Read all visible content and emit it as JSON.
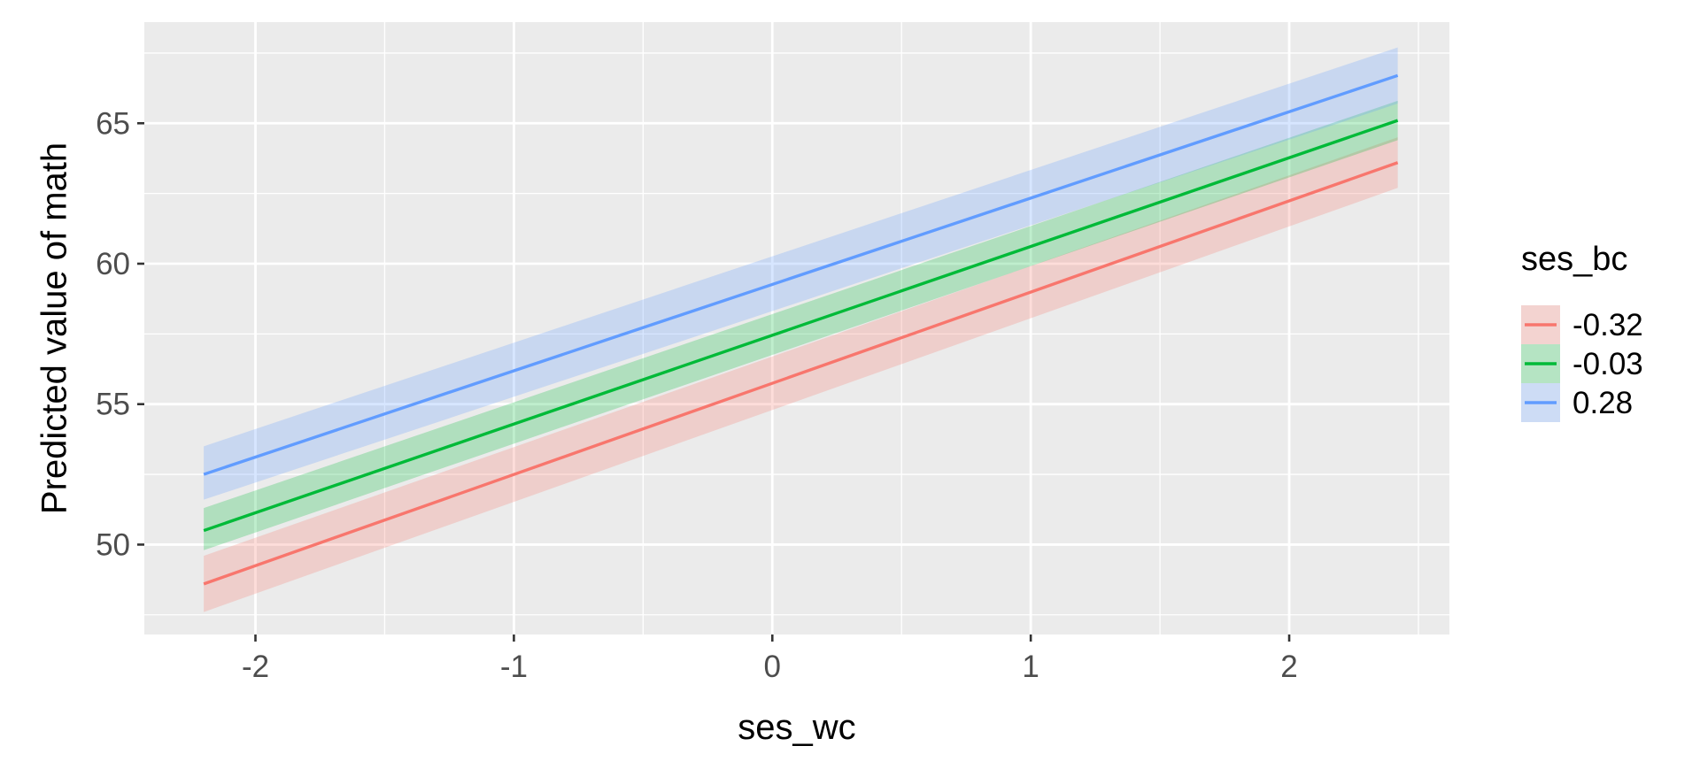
{
  "chart_data": {
    "type": "line",
    "title": "",
    "xlabel": "ses_wc",
    "ylabel": "Predicted value of math",
    "xlim": [
      -2.43,
      2.62
    ],
    "ylim": [
      46.8,
      68.6
    ],
    "x_ticks": [
      -2,
      -1,
      0,
      1,
      2
    ],
    "x_tick_labels": [
      "-2",
      "-1",
      "0",
      "1",
      "2"
    ],
    "y_ticks": [
      50,
      55,
      60,
      65
    ],
    "y_tick_labels": [
      "50",
      "55",
      "60",
      "65"
    ],
    "grid": true,
    "legend": {
      "title": "ses_bc",
      "placement": "right"
    },
    "x": [
      -2.2,
      2.42
    ],
    "series": [
      {
        "name": "-0.32",
        "color": "#F8766D",
        "values": [
          48.6,
          63.6
        ],
        "lower": [
          47.6,
          62.7
        ],
        "upper": [
          49.6,
          64.5
        ]
      },
      {
        "name": "-0.03",
        "color": "#00BA38",
        "values": [
          50.5,
          65.1
        ],
        "lower": [
          49.8,
          64.4
        ],
        "upper": [
          51.3,
          65.8
        ]
      },
      {
        "name": "0.28",
        "color": "#619CFF",
        "values": [
          52.5,
          66.7
        ],
        "lower": [
          51.6,
          65.7
        ],
        "upper": [
          53.5,
          67.7
        ]
      }
    ]
  }
}
